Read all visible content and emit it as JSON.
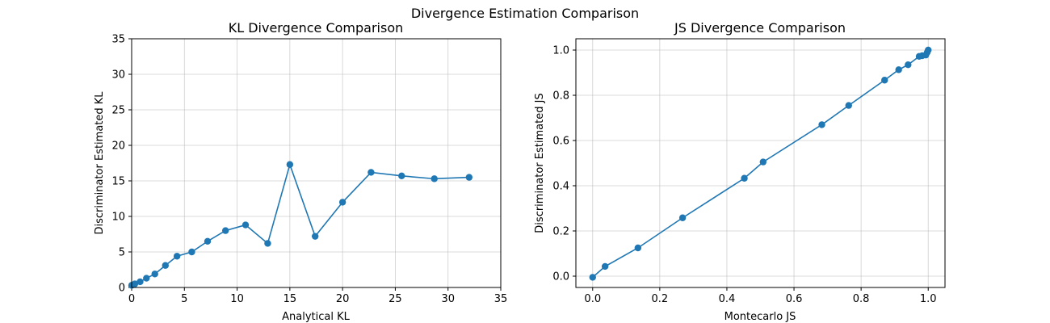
{
  "figure": {
    "suptitle": "Divergence Estimation Comparison"
  },
  "chart_data": [
    {
      "type": "line",
      "title": "KL Divergence Comparison",
      "xlabel": "Analytical KL",
      "ylabel": "Discriminator Estimated KL",
      "xlim": [
        0,
        35
      ],
      "ylim": [
        0,
        35
      ],
      "xticks": [
        0,
        5,
        10,
        15,
        20,
        25,
        30,
        35
      ],
      "yticks": [
        0,
        5,
        10,
        15,
        20,
        25,
        30,
        35
      ],
      "xtick_labels": [
        "0",
        "5",
        "10",
        "15",
        "20",
        "25",
        "30",
        "35"
      ],
      "ytick_labels": [
        "0",
        "5",
        "10",
        "15",
        "20",
        "25",
        "30",
        "35"
      ],
      "grid": true,
      "color": "#1f77b4",
      "marker": "circle",
      "series": [
        {
          "x": [
            0.0,
            0.3,
            0.8,
            1.4,
            2.2,
            3.2,
            4.3,
            5.7,
            7.2,
            8.9,
            10.8,
            12.9,
            15.0,
            17.4,
            20.0,
            22.7,
            25.6,
            28.7,
            32.0
          ],
          "y": [
            0.3,
            0.5,
            0.8,
            1.3,
            1.9,
            3.1,
            4.4,
            5.0,
            6.5,
            8.0,
            8.8,
            6.2,
            17.3,
            7.2,
            12.0,
            16.2,
            15.7,
            15.3,
            15.5
          ]
        }
      ]
    },
    {
      "type": "line",
      "title": "JS Divergence Comparison",
      "xlabel": "Montecarlo JS",
      "ylabel": "Discriminator Estimated JS",
      "xlim": [
        -0.05,
        1.05
      ],
      "ylim": [
        -0.05,
        1.05
      ],
      "xticks": [
        0.0,
        0.2,
        0.4,
        0.6,
        0.8,
        1.0
      ],
      "yticks": [
        0.0,
        0.2,
        0.4,
        0.6,
        0.8,
        1.0
      ],
      "xtick_labels": [
        "0.0",
        "0.2",
        "0.4",
        "0.6",
        "0.8",
        "1.0"
      ],
      "ytick_labels": [
        "0.0",
        "0.2",
        "0.4",
        "0.6",
        "0.8",
        "1.0"
      ],
      "grid": true,
      "color": "#1f77b4",
      "marker": "circle",
      "series": [
        {
          "x": [
            0.0,
            0.037,
            0.135,
            0.268,
            0.452,
            0.508,
            0.683,
            0.763,
            0.87,
            0.912,
            0.94,
            0.973,
            0.982,
            0.993,
            0.997,
            1.0
          ],
          "y": [
            -0.005,
            0.043,
            0.125,
            0.258,
            0.433,
            0.505,
            0.67,
            0.755,
            0.867,
            0.913,
            0.935,
            0.972,
            0.975,
            0.978,
            0.99,
            1.0
          ]
        }
      ]
    }
  ]
}
